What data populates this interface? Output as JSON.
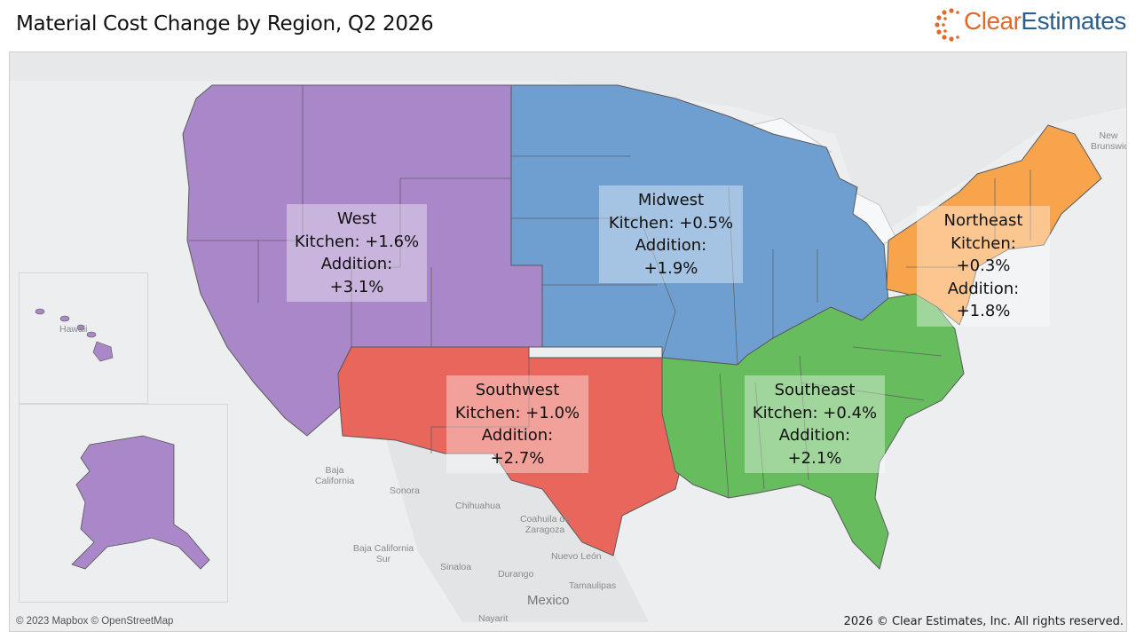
{
  "title": "Material Cost Change by Region, Q2 2026",
  "logo": {
    "brand_first": "Clear",
    "brand_second": "Estimates"
  },
  "colors": {
    "west": "#a987c9",
    "midwest": "#6f9fd0",
    "northeast": "#f8a44d",
    "southwest": "#e8665c",
    "southeast": "#67bd5e"
  },
  "regions": [
    {
      "name": "West",
      "kitchen": "Kitchen: +1.6%",
      "addition": "Addition: +3.1%"
    },
    {
      "name": "Midwest",
      "kitchen": "Kitchen: +0.5%",
      "addition": "Addition: +1.9%"
    },
    {
      "name": "Northeast",
      "kitchen": "Kitchen: +0.3%",
      "addition": "Addition: +1.8%"
    },
    {
      "name": "Southwest",
      "kitchen": "Kitchen: +1.0%",
      "addition": "Addition: +2.7%"
    },
    {
      "name": "Southeast",
      "kitchen": "Kitchen: +0.4%",
      "addition": "Addition: +2.1%"
    }
  ],
  "places": {
    "baja_california": "Baja California",
    "sonora": "Sonora",
    "chihuahua": "Chihuahua",
    "coahuila": "Coahuila de Zaragoza",
    "baja_california_sur": "Baja California Sur",
    "nuevo_leon": "Nuevo León",
    "sinaloa": "Sinaloa",
    "durango": "Durango",
    "tamaulipas": "Tamaulipas",
    "mexico": "Mexico",
    "nayarit": "Nayarit",
    "hawaii": "Hawaii",
    "new_brunswick": "New Brunswick"
  },
  "attribution": "© 2023 Mapbox © OpenStreetMap",
  "copyright": "2026 © Clear Estimates, Inc. All rights reserved."
}
